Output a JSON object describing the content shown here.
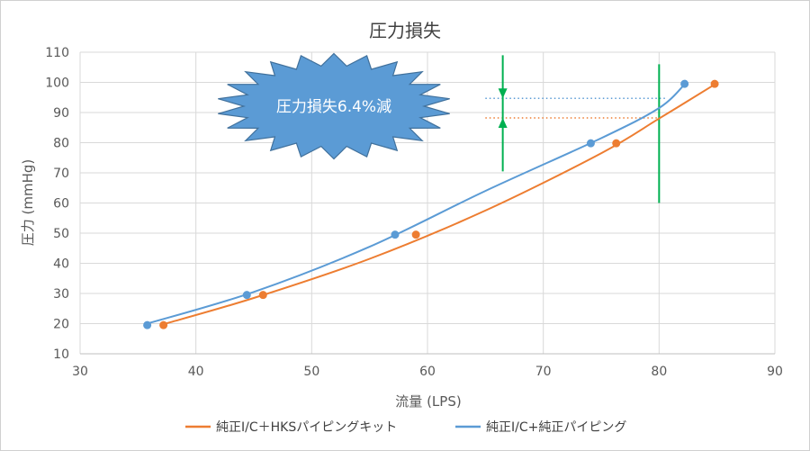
{
  "chart_data": {
    "type": "scatter",
    "title": "圧力損失",
    "xlabel": "流量 (LPS)",
    "ylabel": "圧力 (mmHg)",
    "xlim": [
      30,
      90
    ],
    "ylim": [
      10,
      110
    ],
    "x_ticks": [
      "30",
      "40",
      "50",
      "60",
      "70",
      "80",
      "90"
    ],
    "y_ticks": [
      "10",
      "20",
      "30",
      "40",
      "50",
      "60",
      "70",
      "80",
      "90",
      "100",
      "110"
    ],
    "grid": true,
    "legend_position": "bottom",
    "series": [
      {
        "name": "純正I/C＋HKSパイピングキット",
        "color": "#ed7d31",
        "x": [
          37.2,
          45.8,
          59.0,
          76.3,
          84.8
        ],
        "y": [
          19.5,
          29.5,
          49.5,
          79.8,
          99.5
        ],
        "trend": [
          [
            37.2,
            19.8
          ],
          [
            45,
            28.5
          ],
          [
            55,
            41.5
          ],
          [
            65,
            57.5
          ],
          [
            75,
            76.5
          ],
          [
            80,
            88
          ],
          [
            84.8,
            99.3
          ]
        ]
      },
      {
        "name": "純正I/C+純正パイピング",
        "color": "#5b9bd5",
        "x": [
          35.8,
          44.4,
          57.2,
          74.1,
          82.2
        ],
        "y": [
          19.5,
          29.5,
          49.5,
          79.8,
          99.5
        ],
        "trend": [
          [
            35.8,
            20.0
          ],
          [
            45,
            30.5
          ],
          [
            55,
            45.5
          ],
          [
            65,
            64
          ],
          [
            75,
            81.5
          ],
          [
            80,
            91.5
          ],
          [
            82.2,
            99.3
          ]
        ]
      }
    ],
    "annotations": {
      "callout_text": "圧力損失6.4%減",
      "callout_color": "#5b9bd5",
      "marker_color": "#00b050",
      "vertical_lines": [
        {
          "x": 80,
          "y": [
            60,
            106
          ]
        },
        {
          "x": 66.5,
          "y": [
            70.5,
            109
          ]
        }
      ],
      "dotted_levels": [
        {
          "y": 94.7,
          "x": [
            65,
            80.5
          ],
          "color": "#5b9bd5"
        },
        {
          "y": 88.2,
          "x": [
            65,
            80
          ],
          "color": "#ed7d31"
        }
      ]
    }
  }
}
